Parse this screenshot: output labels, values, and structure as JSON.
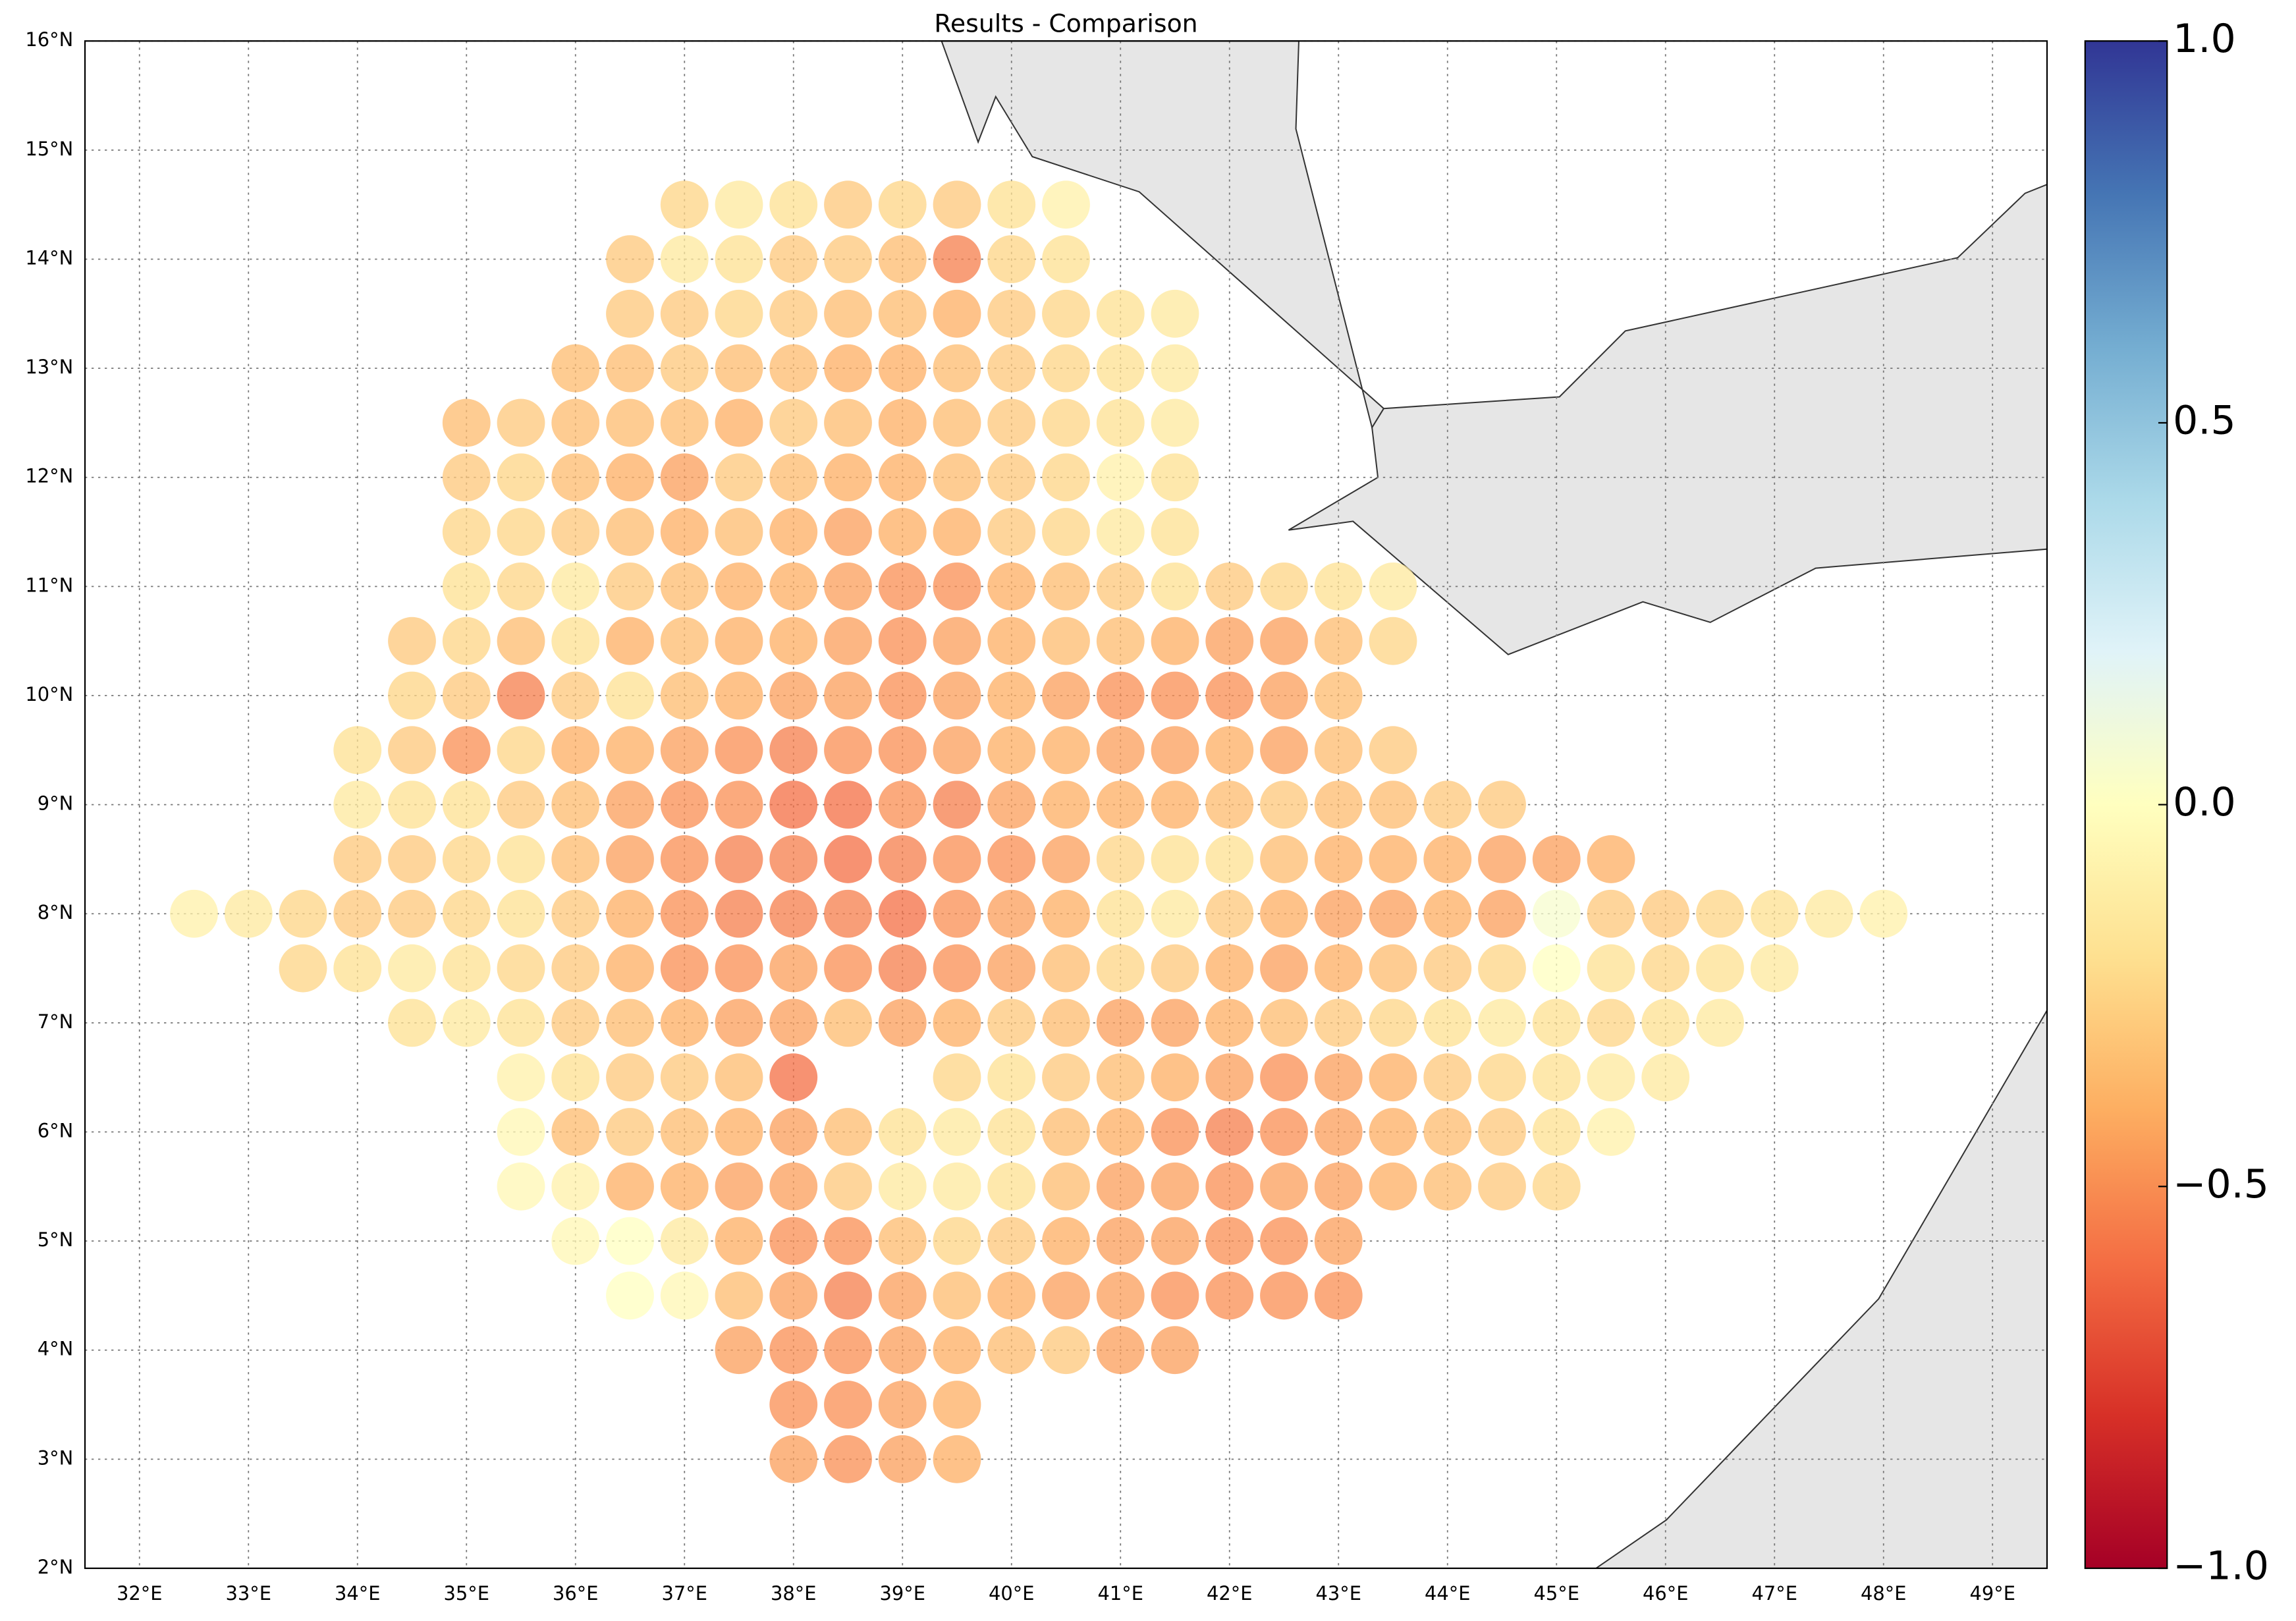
{
  "chart_data": {
    "type": "scatter",
    "title": "Results - Comparison",
    "colormap": "RdYlBu",
    "grid": true,
    "xlim": [
      31.5,
      49.5
    ],
    "ylim": [
      2,
      16
    ],
    "xticks": [
      {
        "value": 32,
        "label": "32°E"
      },
      {
        "value": 33,
        "label": "33°E"
      },
      {
        "value": 34,
        "label": "34°E"
      },
      {
        "value": 35,
        "label": "35°E"
      },
      {
        "value": 36,
        "label": "36°E"
      },
      {
        "value": 37,
        "label": "37°E"
      },
      {
        "value": 38,
        "label": "38°E"
      },
      {
        "value": 39,
        "label": "39°E"
      },
      {
        "value": 40,
        "label": "40°E"
      },
      {
        "value": 41,
        "label": "41°E"
      },
      {
        "value": 42,
        "label": "42°E"
      },
      {
        "value": 43,
        "label": "43°E"
      },
      {
        "value": 44,
        "label": "44°E"
      },
      {
        "value": 45,
        "label": "45°E"
      },
      {
        "value": 46,
        "label": "46°E"
      },
      {
        "value": 47,
        "label": "47°E"
      },
      {
        "value": 48,
        "label": "48°E"
      },
      {
        "value": 49,
        "label": "49°E"
      }
    ],
    "yticks": [
      {
        "value": 2,
        "label": "2°N"
      },
      {
        "value": 3,
        "label": "3°N"
      },
      {
        "value": 4,
        "label": "4°N"
      },
      {
        "value": 5,
        "label": "5°N"
      },
      {
        "value": 6,
        "label": "6°N"
      },
      {
        "value": 7,
        "label": "7°N"
      },
      {
        "value": 8,
        "label": "8°N"
      },
      {
        "value": 9,
        "label": "9°N"
      },
      {
        "value": 10,
        "label": "10°N"
      },
      {
        "value": 11,
        "label": "11°N"
      },
      {
        "value": 12,
        "label": "12°N"
      },
      {
        "value": 13,
        "label": "13°N"
      },
      {
        "value": 14,
        "label": "14°N"
      },
      {
        "value": 15,
        "label": "15°N"
      },
      {
        "value": 16,
        "label": "16°N"
      }
    ],
    "clim": [
      -1,
      1
    ],
    "cticks": [
      {
        "value": -1,
        "label": "−1.0"
      },
      {
        "value": -0.5,
        "label": "−0.5"
      },
      {
        "value": 0,
        "label": "0.0"
      },
      {
        "value": 0.5,
        "label": "0.5"
      },
      {
        "value": 1,
        "label": "1.0"
      }
    ],
    "rows": [
      {
        "lat": 14.5,
        "lon": [
          37,
          37.5,
          38,
          38.5,
          39,
          39.5,
          40,
          40.5
        ],
        "values": [
          -0.25,
          -0.15,
          -0.2,
          -0.3,
          -0.25,
          -0.3,
          -0.2,
          -0.1
        ]
      },
      {
        "lat": 14,
        "lon": [
          36.5,
          37,
          37.5,
          38,
          38.5,
          39,
          39.5,
          40,
          40.5
        ],
        "values": [
          -0.3,
          -0.15,
          -0.2,
          -0.3,
          -0.3,
          -0.35,
          -0.55,
          -0.25,
          -0.2
        ]
      },
      {
        "lat": 13.5,
        "lon": [
          36.5,
          37,
          37.5,
          38,
          38.5,
          39,
          39.5,
          40,
          40.5,
          41,
          41.5
        ],
        "values": [
          -0.3,
          -0.3,
          -0.25,
          -0.3,
          -0.35,
          -0.35,
          -0.4,
          -0.3,
          -0.25,
          -0.2,
          -0.15
        ]
      },
      {
        "lat": 13,
        "lon": [
          36,
          36.5,
          37,
          37.5,
          38,
          38.5,
          39,
          39.5,
          40,
          40.5,
          41,
          41.5
        ],
        "values": [
          -0.35,
          -0.35,
          -0.3,
          -0.35,
          -0.35,
          -0.4,
          -0.4,
          -0.35,
          -0.3,
          -0.25,
          -0.2,
          -0.15
        ]
      },
      {
        "lat": 12.5,
        "lon": [
          35,
          35.5,
          36,
          36.5,
          37,
          37.5,
          38,
          38.5,
          39,
          39.5,
          40,
          40.5,
          41,
          41.5
        ],
        "values": [
          -0.35,
          -0.3,
          -0.35,
          -0.35,
          -0.35,
          -0.4,
          -0.3,
          -0.35,
          -0.4,
          -0.35,
          -0.3,
          -0.25,
          -0.2,
          -0.15
        ]
      },
      {
        "lat": 12,
        "lon": [
          35,
          35.5,
          36,
          36.5,
          37,
          37.5,
          38,
          38.5,
          39,
          39.5,
          40,
          40.5,
          41,
          41.5
        ],
        "values": [
          -0.3,
          -0.25,
          -0.35,
          -0.4,
          -0.45,
          -0.3,
          -0.35,
          -0.4,
          -0.4,
          -0.35,
          -0.3,
          -0.25,
          -0.1,
          -0.2
        ]
      },
      {
        "lat": 11.5,
        "lon": [
          35,
          35.5,
          36,
          36.5,
          37,
          37.5,
          38,
          38.5,
          39,
          39.5,
          40,
          40.5,
          41,
          41.5
        ],
        "values": [
          -0.25,
          -0.25,
          -0.3,
          -0.35,
          -0.4,
          -0.35,
          -0.4,
          -0.45,
          -0.4,
          -0.4,
          -0.3,
          -0.25,
          -0.15,
          -0.2
        ]
      },
      {
        "lat": 11,
        "lon": [
          35,
          35.5,
          36,
          36.5,
          37,
          37.5,
          38,
          38.5,
          39,
          39.5,
          40,
          40.5,
          41,
          41.5,
          42,
          42.5,
          43,
          43.5
        ],
        "values": [
          -0.2,
          -0.25,
          -0.15,
          -0.3,
          -0.35,
          -0.4,
          -0.4,
          -0.45,
          -0.5,
          -0.5,
          -0.4,
          -0.35,
          -0.3,
          -0.2,
          -0.3,
          -0.25,
          -0.2,
          -0.15
        ]
      },
      {
        "lat": 10.5,
        "lon": [
          34.5,
          35,
          35.5,
          36,
          36.5,
          37,
          37.5,
          38,
          38.5,
          39,
          39.5,
          40,
          40.5,
          41,
          41.5,
          42,
          42.5,
          43,
          43.5
        ],
        "values": [
          -0.3,
          -0.25,
          -0.35,
          -0.2,
          -0.4,
          -0.35,
          -0.4,
          -0.4,
          -0.45,
          -0.5,
          -0.45,
          -0.4,
          -0.35,
          -0.35,
          -0.4,
          -0.45,
          -0.45,
          -0.35,
          -0.25
        ]
      },
      {
        "lat": 10,
        "lon": [
          34.5,
          35,
          35.5,
          36,
          36.5,
          37,
          37.5,
          38,
          38.5,
          39,
          39.5,
          40,
          40.5,
          41,
          41.5,
          42,
          42.5,
          43
        ],
        "values": [
          -0.25,
          -0.3,
          -0.55,
          -0.3,
          -0.2,
          -0.35,
          -0.4,
          -0.45,
          -0.45,
          -0.5,
          -0.45,
          -0.4,
          -0.45,
          -0.5,
          -0.5,
          -0.5,
          -0.45,
          -0.35
        ]
      },
      {
        "lat": 9.5,
        "lon": [
          34,
          34.5,
          35,
          35.5,
          36,
          36.5,
          37,
          37.5,
          38,
          38.5,
          39,
          39.5,
          40,
          40.5,
          41,
          41.5,
          42,
          42.5,
          43,
          43.5
        ],
        "values": [
          -0.2,
          -0.3,
          -0.5,
          -0.25,
          -0.4,
          -0.4,
          -0.45,
          -0.5,
          -0.55,
          -0.5,
          -0.5,
          -0.45,
          -0.4,
          -0.4,
          -0.45,
          -0.45,
          -0.4,
          -0.45,
          -0.35,
          -0.3
        ]
      },
      {
        "lat": 9,
        "lon": [
          34,
          34.5,
          35,
          35.5,
          36,
          36.5,
          37,
          37.5,
          38,
          38.5,
          39,
          39.5,
          40,
          40.5,
          41,
          41.5,
          42,
          42.5,
          43,
          43.5,
          44,
          44.5
        ],
        "values": [
          -0.15,
          -0.2,
          -0.2,
          -0.3,
          -0.35,
          -0.45,
          -0.5,
          -0.5,
          -0.6,
          -0.6,
          -0.5,
          -0.55,
          -0.45,
          -0.4,
          -0.4,
          -0.4,
          -0.35,
          -0.3,
          -0.35,
          -0.35,
          -0.3,
          -0.3
        ]
      },
      {
        "lat": 8.5,
        "lon": [
          34,
          34.5,
          35,
          35.5,
          36,
          36.5,
          37,
          37.5,
          38,
          38.5,
          39,
          39.5,
          40,
          40.5,
          41,
          41.5,
          42,
          42.5,
          43,
          43.5,
          44,
          44.5,
          45,
          45.5
        ],
        "values": [
          -0.3,
          -0.3,
          -0.25,
          -0.2,
          -0.35,
          -0.45,
          -0.5,
          -0.55,
          -0.55,
          -0.6,
          -0.55,
          -0.5,
          -0.5,
          -0.45,
          -0.25,
          -0.2,
          -0.2,
          -0.35,
          -0.4,
          -0.4,
          -0.4,
          -0.45,
          -0.45,
          -0.4
        ]
      },
      {
        "lat": 8,
        "lon": [
          32.5,
          33,
          33.5,
          34,
          34.5,
          35,
          35.5,
          36,
          36.5,
          37,
          37.5,
          38,
          38.5,
          39,
          39.5,
          40,
          40.5,
          41,
          41.5,
          42,
          42.5,
          43,
          43.5,
          44,
          44.5,
          45,
          45.5,
          46,
          46.5,
          47,
          47.5,
          48
        ],
        "values": [
          -0.1,
          -0.15,
          -0.25,
          -0.3,
          -0.3,
          -0.25,
          -0.2,
          -0.3,
          -0.4,
          -0.5,
          -0.55,
          -0.55,
          -0.55,
          -0.6,
          -0.5,
          -0.45,
          -0.4,
          -0.2,
          -0.15,
          -0.3,
          -0.4,
          -0.45,
          -0.45,
          -0.4,
          -0.45,
          0.05,
          -0.3,
          -0.3,
          -0.25,
          -0.2,
          -0.15,
          -0.1
        ]
      },
      {
        "lat": 7.5,
        "lon": [
          33.5,
          34,
          34.5,
          35,
          35.5,
          36,
          36.5,
          37,
          37.5,
          38,
          38.5,
          39,
          39.5,
          40,
          40.5,
          41,
          41.5,
          42,
          42.5,
          43,
          43.5,
          44,
          44.5,
          45,
          45.5,
          46,
          46.5,
          47
        ],
        "values": [
          -0.25,
          -0.2,
          -0.15,
          -0.2,
          -0.25,
          -0.3,
          -0.4,
          -0.5,
          -0.5,
          -0.45,
          -0.5,
          -0.55,
          -0.5,
          -0.45,
          -0.35,
          -0.25,
          -0.3,
          -0.4,
          -0.45,
          -0.4,
          -0.35,
          -0.3,
          -0.25,
          0,
          -0.2,
          -0.25,
          -0.2,
          -0.15
        ]
      },
      {
        "lat": 7,
        "lon": [
          34.5,
          35,
          35.5,
          36,
          36.5,
          37,
          37.5,
          38,
          38.5,
          39,
          39.5,
          40,
          40.5,
          41,
          41.5,
          42,
          42.5,
          43,
          43.5,
          44,
          44.5,
          45,
          45.5,
          46,
          46.5
        ],
        "values": [
          -0.2,
          -0.15,
          -0.2,
          -0.3,
          -0.35,
          -0.4,
          -0.45,
          -0.45,
          -0.35,
          -0.45,
          -0.4,
          -0.3,
          -0.35,
          -0.45,
          -0.45,
          -0.4,
          -0.35,
          -0.3,
          -0.25,
          -0.2,
          -0.15,
          -0.2,
          -0.25,
          -0.2,
          -0.15
        ]
      },
      {
        "lat": 6.5,
        "lon": [
          35.5,
          36,
          36.5,
          37,
          37.5,
          38,
          39.5,
          40,
          40.5,
          41,
          41.5,
          42,
          42.5,
          43,
          43.5,
          44,
          44.5,
          45,
          45.5,
          46
        ],
        "values": [
          -0.1,
          -0.2,
          -0.3,
          -0.3,
          -0.35,
          -0.6,
          -0.25,
          -0.2,
          -0.3,
          -0.35,
          -0.4,
          -0.45,
          -0.5,
          -0.45,
          -0.4,
          -0.3,
          -0.25,
          -0.2,
          -0.15,
          -0.15
        ]
      },
      {
        "lat": 6,
        "lon": [
          35.5,
          36,
          36.5,
          37,
          37.5,
          38,
          38.5,
          39,
          39.5,
          40,
          40.5,
          41,
          41.5,
          42,
          42.5,
          43,
          43.5,
          44,
          44.5,
          45,
          45.5
        ],
        "values": [
          -0.05,
          -0.35,
          -0.3,
          -0.35,
          -0.4,
          -0.45,
          -0.35,
          -0.2,
          -0.15,
          -0.2,
          -0.35,
          -0.4,
          -0.5,
          -0.55,
          -0.5,
          -0.45,
          -0.4,
          -0.35,
          -0.3,
          -0.2,
          -0.1
        ]
      },
      {
        "lat": 5.5,
        "lon": [
          35.5,
          36,
          36.5,
          37,
          37.5,
          38,
          38.5,
          39,
          39.5,
          40,
          40.5,
          41,
          41.5,
          42,
          42.5,
          43,
          43.5,
          44,
          44.5,
          45
        ],
        "values": [
          -0.05,
          -0.1,
          -0.4,
          -0.4,
          -0.45,
          -0.45,
          -0.3,
          -0.15,
          -0.15,
          -0.2,
          -0.35,
          -0.45,
          -0.45,
          -0.5,
          -0.45,
          -0.45,
          -0.4,
          -0.35,
          -0.3,
          -0.25
        ]
      },
      {
        "lat": 5,
        "lon": [
          36,
          36.5,
          37,
          37.5,
          38,
          38.5,
          39,
          39.5,
          40,
          40.5,
          41,
          41.5,
          42,
          42.5,
          43
        ],
        "values": [
          -0.05,
          0,
          -0.15,
          -0.4,
          -0.5,
          -0.5,
          -0.35,
          -0.25,
          -0.3,
          -0.4,
          -0.45,
          -0.45,
          -0.5,
          -0.5,
          -0.45
        ]
      },
      {
        "lat": 4.5,
        "lon": [
          36.5,
          37,
          37.5,
          38,
          38.5,
          39,
          39.5,
          40,
          40.5,
          41,
          41.5,
          42,
          42.5,
          43
        ],
        "values": [
          0,
          -0.05,
          -0.35,
          -0.45,
          -0.55,
          -0.45,
          -0.35,
          -0.4,
          -0.45,
          -0.45,
          -0.5,
          -0.5,
          -0.5,
          -0.5
        ]
      },
      {
        "lat": 4,
        "lon": [
          37.5,
          38,
          38.5,
          39,
          39.5,
          40,
          40.5,
          41,
          41.5
        ],
        "values": [
          -0.45,
          -0.5,
          -0.5,
          -0.45,
          -0.4,
          -0.35,
          -0.3,
          -0.45,
          -0.45
        ]
      },
      {
        "lat": 3.5,
        "lon": [
          38,
          38.5,
          39,
          39.5
        ],
        "values": [
          -0.5,
          -0.5,
          -0.45,
          -0.4
        ]
      },
      {
        "lat": 3,
        "lon": [
          38,
          38.5,
          39,
          39.5
        ],
        "values": [
          -0.45,
          -0.5,
          -0.45,
          -0.4
        ]
      }
    ]
  }
}
